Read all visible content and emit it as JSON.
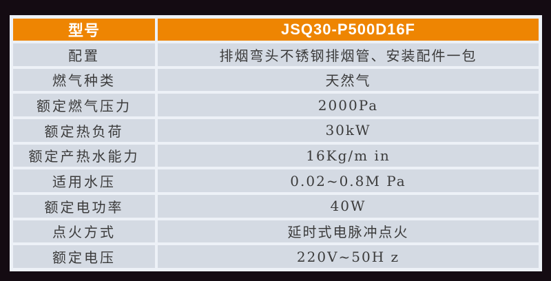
{
  "table": {
    "header": {
      "model_label": "型号",
      "model_value": "JSQ30-P500D16F"
    },
    "rows": [
      {
        "label": "配置",
        "value": "排烟弯头不锈钢排烟管、安装配件一包"
      },
      {
        "label": "燃气种类",
        "value": "天然气"
      },
      {
        "label": "额定燃气压力",
        "value": "2000Pa"
      },
      {
        "label": "额定热负荷",
        "value": "30kW"
      },
      {
        "label": "额定产热水能力",
        "value": "16Kg/m in"
      },
      {
        "label": "适用水压",
        "value": "0.02~0.8M Pa"
      },
      {
        "label": "额定电功率",
        "value": "40W"
      },
      {
        "label": "点火方式",
        "value": "延时式电脉冲点火"
      },
      {
        "label": "额定电压",
        "value": "220V~50H z"
      }
    ]
  },
  "colors": {
    "page-bg": "#140b12",
    "header-bg": "#ee8502",
    "header-text": "#ffffff",
    "cell-bg": "#d4dae3",
    "grid": "#edf1f7",
    "cell-text": "#3b3b3b"
  }
}
